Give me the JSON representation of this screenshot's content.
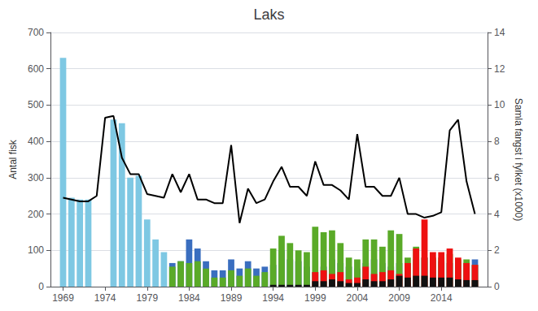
{
  "chart_data": {
    "type": "bar",
    "title": "Laks",
    "ylabel": "Antal fisk",
    "y2label": "Samla fangst i fylket (x1000)",
    "x": [
      1969,
      1970,
      1971,
      1972,
      1973,
      1974,
      1975,
      1976,
      1977,
      1978,
      1979,
      1980,
      1981,
      1982,
      1983,
      1984,
      1985,
      1986,
      1987,
      1988,
      1989,
      1990,
      1991,
      1992,
      1993,
      1994,
      1995,
      1996,
      1997,
      1998,
      1999,
      2000,
      2001,
      2002,
      2003,
      2004,
      2005,
      2006,
      2007,
      2008,
      2009,
      2010,
      2011,
      2012,
      2013,
      2014,
      2015,
      2016,
      2017,
      2018
    ],
    "xlim": [
      1967.5,
      2019.5
    ],
    "xticks": [
      1969,
      1974,
      1979,
      1984,
      1989,
      1994,
      1999,
      2004,
      2009,
      2014
    ],
    "ylim": [
      0,
      700
    ],
    "yticks": [
      0,
      100,
      200,
      300,
      400,
      500,
      600,
      700
    ],
    "y2lim": [
      0,
      14
    ],
    "y2ticks": [
      0,
      2,
      4,
      6,
      8,
      10,
      12,
      14
    ],
    "grid": true,
    "stacked": true,
    "series": [
      {
        "type": "bar",
        "color": "#7EC8E3",
        "values": [
          630,
          245,
          240,
          240,
          0,
          0,
          460,
          450,
          300,
          305,
          185,
          130,
          95,
          0,
          0,
          0,
          0,
          0,
          0,
          0,
          0,
          0,
          0,
          0,
          0,
          0,
          0,
          0,
          0,
          0,
          0,
          0,
          0,
          0,
          0,
          0,
          0,
          0,
          0,
          0,
          0,
          0,
          0,
          0,
          0,
          0,
          0,
          0,
          0,
          0
        ]
      },
      {
        "type": "bar",
        "color": "#3A6EBF",
        "values": [
          0,
          0,
          0,
          0,
          0,
          0,
          0,
          0,
          0,
          0,
          0,
          0,
          0,
          65,
          70,
          130,
          105,
          70,
          45,
          45,
          75,
          50,
          70,
          50,
          55,
          60,
          100,
          75,
          70,
          55,
          40,
          55,
          75,
          65,
          55,
          50,
          65,
          75,
          65,
          55,
          65,
          65,
          75,
          80,
          75,
          70,
          65,
          70,
          65,
          75
        ]
      },
      {
        "type": "bar",
        "color": "#5AAA28",
        "values": [
          0,
          0,
          0,
          0,
          0,
          0,
          0,
          0,
          0,
          0,
          0,
          0,
          0,
          55,
          70,
          65,
          70,
          50,
          25,
          25,
          45,
          30,
          50,
          30,
          40,
          105,
          140,
          120,
          100,
          95,
          165,
          150,
          155,
          120,
          80,
          75,
          130,
          130,
          110,
          155,
          145,
          80,
          110,
          80,
          80,
          80,
          90,
          75,
          75,
          60
        ]
      },
      {
        "type": "bar",
        "color": "#EE1111",
        "values": [
          0,
          0,
          0,
          0,
          0,
          0,
          0,
          0,
          0,
          0,
          0,
          0,
          0,
          0,
          0,
          0,
          0,
          0,
          0,
          0,
          0,
          0,
          0,
          0,
          0,
          0,
          0,
          0,
          0,
          0,
          40,
          45,
          35,
          40,
          20,
          25,
          55,
          35,
          40,
          45,
          35,
          65,
          105,
          185,
          95,
          95,
          105,
          80,
          65,
          60
        ]
      },
      {
        "type": "bar",
        "color": "#111111",
        "values": [
          0,
          0,
          0,
          0,
          0,
          0,
          0,
          0,
          0,
          0,
          0,
          0,
          0,
          0,
          0,
          0,
          0,
          0,
          0,
          0,
          0,
          0,
          0,
          0,
          0,
          5,
          5,
          5,
          5,
          5,
          15,
          15,
          20,
          15,
          10,
          10,
          20,
          15,
          15,
          20,
          30,
          25,
          30,
          30,
          25,
          25,
          25,
          20,
          18,
          18
        ]
      },
      {
        "type": "line",
        "axis": "y2",
        "color": "#000000",
        "values": [
          4.9,
          4.8,
          4.7,
          4.7,
          5.0,
          9.3,
          9.4,
          7.1,
          6.2,
          6.2,
          5.1,
          5.0,
          4.9,
          6.2,
          5.2,
          6.2,
          4.8,
          4.8,
          4.6,
          4.6,
          7.8,
          3.5,
          5.4,
          4.6,
          4.8,
          5.8,
          6.6,
          5.5,
          5.5,
          5.0,
          6.9,
          5.6,
          5.6,
          5.3,
          4.8,
          8.4,
          5.5,
          5.5,
          5.0,
          5.0,
          6.0,
          4.0,
          4.0,
          3.8,
          3.9,
          4.1,
          8.6,
          9.2,
          5.8,
          4.0
        ]
      }
    ]
  }
}
